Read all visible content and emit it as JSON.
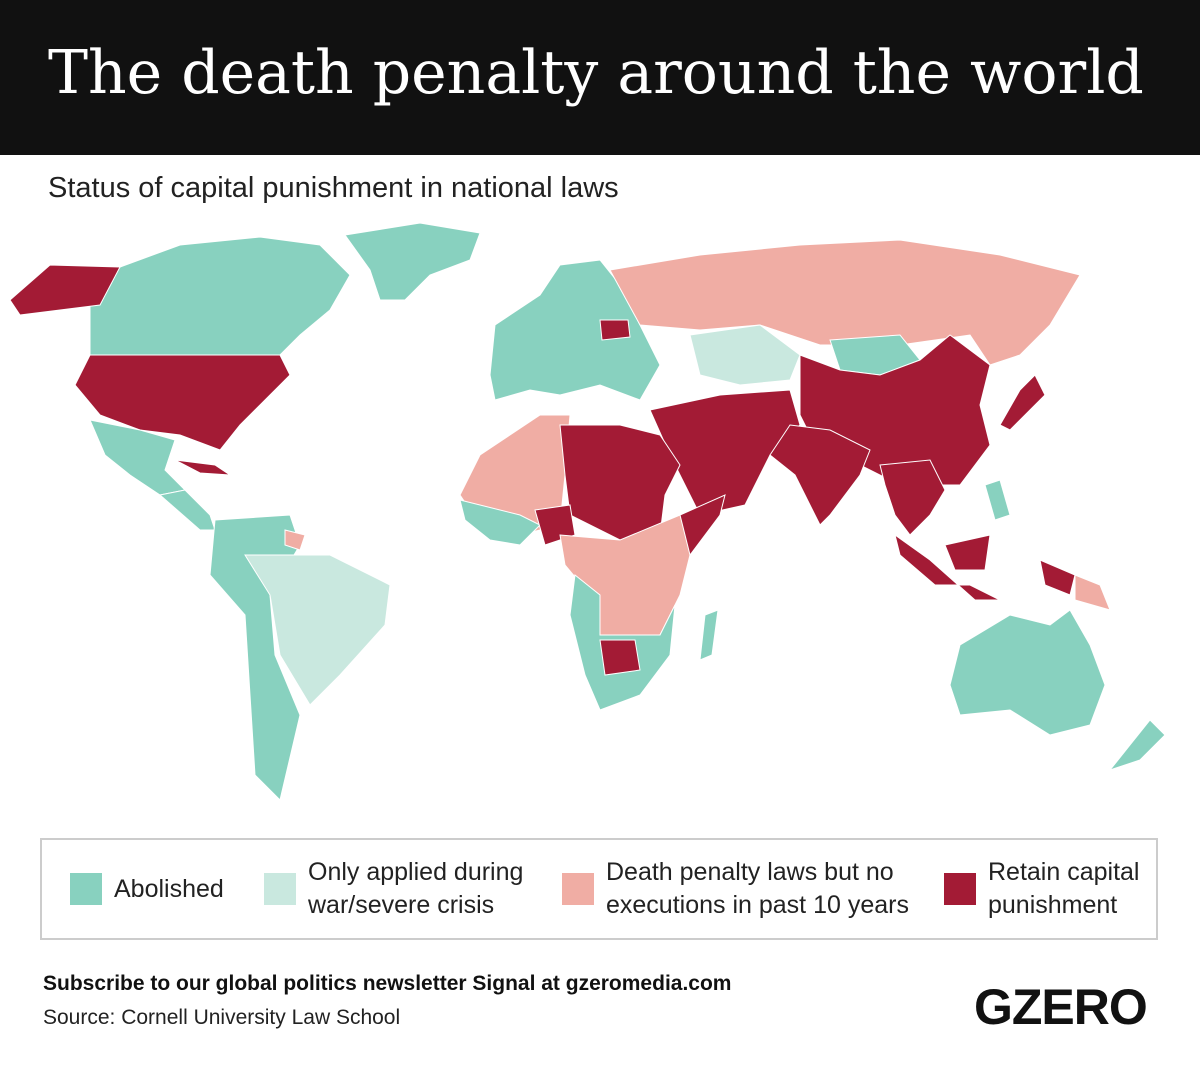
{
  "header": {
    "title": "The death penalty around the world",
    "subtitle": "Status of capital punishment in national laws"
  },
  "legend": {
    "items": [
      {
        "label": "Abolished",
        "color": "#88d1bf"
      },
      {
        "label": "Only applied during war/severe crisis",
        "color": "#c9e8df"
      },
      {
        "label": "Death penalty laws but no executions in past 10 years",
        "color": "#f0ada4"
      },
      {
        "label": "Retain capital punishment",
        "color": "#a31b35"
      }
    ]
  },
  "footer": {
    "cta": "Subscribe to our global politics newsletter Signal at gzeromedia.com",
    "source": "Source: Cornell University Law School",
    "logo": "GZERO"
  }
}
